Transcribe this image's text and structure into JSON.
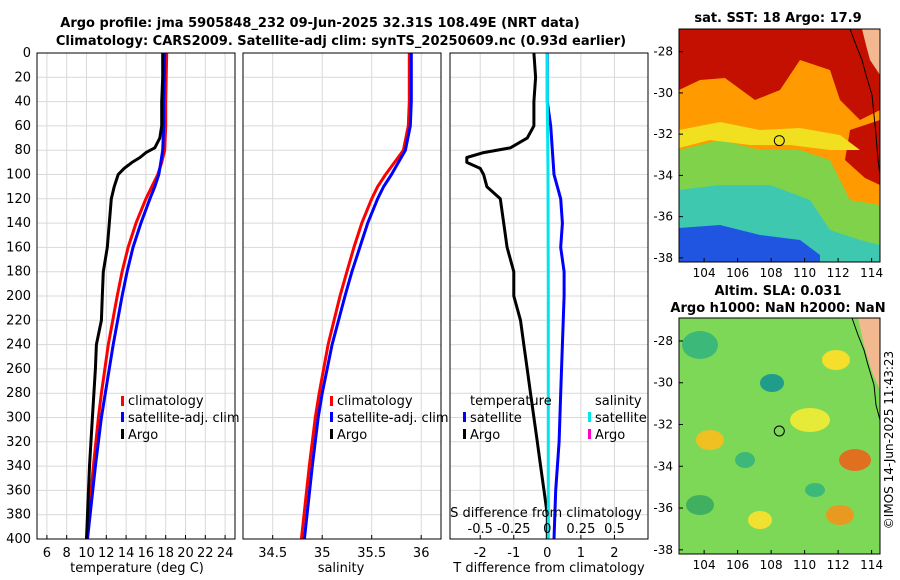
{
  "header": {
    "title_line1": "Argo profile: jma 5905848_232 09-Jun-2025 32.31S 108.49E (NRT data)",
    "title_line2": "Climatology: CARS2009. Satellite-adj clim: synTS_20250609.nc (0.93d earlier)"
  },
  "credit": "©IMOS 14-Jun-2025 11:43:23",
  "colors": {
    "climatology": "#ff0000",
    "satellite": "#0000ff",
    "argo": "#000000",
    "cyan": "#00e5ee",
    "magenta": "#ff00cc"
  },
  "chart_data": [
    {
      "type": "line",
      "title": "",
      "xlabel": "temperature (deg C)",
      "ylabel": "",
      "xlim": [
        5,
        25
      ],
      "ylim": [
        400,
        0
      ],
      "xticks": [
        6,
        8,
        10,
        12,
        14,
        16,
        18,
        20,
        22,
        24
      ],
      "yticks": [
        0,
        20,
        40,
        60,
        80,
        100,
        120,
        140,
        160,
        180,
        200,
        220,
        240,
        260,
        280,
        300,
        320,
        340,
        360,
        380,
        400
      ],
      "grid": true,
      "legend": {
        "placement": "middle-right",
        "items": [
          "climatology",
          "satellite-adj. clim",
          "Argo"
        ]
      },
      "series": [
        {
          "name": "climatology",
          "color": "#ff0000",
          "depth": [
            0,
            20,
            40,
            60,
            80,
            90,
            100,
            110,
            120,
            140,
            160,
            180,
            200,
            240,
            280,
            300,
            340,
            400
          ],
          "values": [
            18.1,
            18.05,
            18.0,
            18.0,
            17.9,
            17.6,
            17.2,
            16.6,
            16.0,
            15.0,
            14.2,
            13.6,
            13.1,
            12.2,
            11.5,
            11.2,
            10.7,
            10.0
          ]
        },
        {
          "name": "satellite-adj. clim",
          "color": "#0000ff",
          "depth": [
            0,
            20,
            40,
            60,
            80,
            90,
            100,
            110,
            120,
            140,
            160,
            180,
            200,
            240,
            280,
            300,
            340,
            400
          ],
          "values": [
            17.9,
            17.85,
            17.8,
            17.8,
            17.7,
            17.5,
            17.3,
            16.9,
            16.4,
            15.5,
            14.7,
            14.1,
            13.6,
            12.7,
            11.9,
            11.5,
            10.9,
            10.1
          ]
        },
        {
          "name": "Argo",
          "color": "#000000",
          "depth": [
            0,
            20,
            40,
            60,
            70,
            78,
            82,
            86,
            90,
            95,
            100,
            110,
            120,
            140,
            160,
            180,
            200,
            220,
            240,
            260,
            300,
            340,
            400
          ],
          "values": [
            17.7,
            17.7,
            17.6,
            17.6,
            17.4,
            16.9,
            16.0,
            15.4,
            14.6,
            13.8,
            13.2,
            12.8,
            12.5,
            12.3,
            12.1,
            11.7,
            11.6,
            11.5,
            11.0,
            10.9,
            10.6,
            10.3,
            10.0
          ]
        }
      ]
    },
    {
      "type": "line",
      "title": "",
      "xlabel": "salinity",
      "ylabel": "",
      "xlim": [
        34.2,
        36.2
      ],
      "ylim": [
        400,
        0
      ],
      "xticks": [
        34.5,
        35,
        35.5,
        36
      ],
      "xtick_labels": [
        "34.5",
        "35",
        "35.5",
        "36"
      ],
      "grid": true,
      "legend": {
        "placement": "middle-right",
        "items": [
          "climatology",
          "satellite-adj. clim",
          "Argo"
        ]
      },
      "series": [
        {
          "name": "climatology",
          "color": "#ff0000",
          "depth": [
            0,
            20,
            40,
            60,
            80,
            90,
            100,
            110,
            120,
            140,
            160,
            180,
            200,
            240,
            280,
            300,
            340,
            400
          ],
          "values": [
            35.88,
            35.88,
            35.88,
            35.87,
            35.82,
            35.73,
            35.64,
            35.56,
            35.5,
            35.4,
            35.32,
            35.25,
            35.18,
            35.06,
            34.97,
            34.93,
            34.87,
            34.79
          ]
        },
        {
          "name": "satellite-adj. clim",
          "color": "#0000ff",
          "depth": [
            0,
            20,
            40,
            60,
            80,
            90,
            100,
            110,
            120,
            140,
            160,
            180,
            200,
            240,
            280,
            300,
            340,
            400
          ],
          "values": [
            35.9,
            35.9,
            35.9,
            35.89,
            35.84,
            35.77,
            35.7,
            35.62,
            35.56,
            35.46,
            35.38,
            35.3,
            35.23,
            35.1,
            35.0,
            34.96,
            34.9,
            34.82
          ]
        },
        {
          "name": "Argo",
          "color": "#000000",
          "depth": [],
          "values": []
        }
      ]
    },
    {
      "type": "line",
      "title": "",
      "xlabel": "T difference from climatology",
      "xlabel2": "S difference from climatology",
      "ylabel": "",
      "xlim": [
        -2.9,
        3.0
      ],
      "ylim": [
        400,
        0
      ],
      "xticks": [
        -2,
        -1,
        0,
        1,
        2
      ],
      "xtick_labels": [
        "-2",
        "-1",
        "0",
        "1",
        "2"
      ],
      "x2ticks": [
        -0.5,
        -0.25,
        0,
        0.25,
        0.5
      ],
      "x2tick_labels": [
        "-0.5",
        "-0.25",
        "0",
        "0.25",
        "0.5"
      ],
      "x2lim": [
        -0.725,
        0.75
      ],
      "grid": true,
      "legend": {
        "placement": "middle",
        "temperature_header": "temperature",
        "salinity_header": "salinity",
        "items": [
          "satellite",
          "Argo",
          "satellite",
          "Argo"
        ]
      },
      "series": [
        {
          "name": "T satellite",
          "color": "#0000ff",
          "depth": [
            0,
            40,
            60,
            100,
            120,
            140,
            160,
            180,
            200,
            240,
            280,
            320,
            360,
            400
          ],
          "values": [
            0.0,
            0.0,
            0.1,
            0.2,
            0.4,
            0.45,
            0.4,
            0.5,
            0.5,
            0.45,
            0.4,
            0.35,
            0.25,
            0.2
          ]
        },
        {
          "name": "T Argo",
          "color": "#000000",
          "depth": [
            0,
            20,
            40,
            60,
            70,
            78,
            82,
            86,
            90,
            95,
            100,
            110,
            120,
            140,
            160,
            180,
            200,
            220,
            240,
            260,
            280,
            300,
            320,
            340,
            360,
            380,
            400
          ],
          "values": [
            -0.4,
            -0.35,
            -0.4,
            -0.4,
            -0.6,
            -1.1,
            -1.9,
            -2.4,
            -2.4,
            -2.0,
            -1.9,
            -1.8,
            -1.4,
            -1.3,
            -1.2,
            -1.0,
            -1.0,
            -0.8,
            -0.7,
            -0.6,
            -0.5,
            -0.4,
            -0.3,
            -0.2,
            -0.1,
            0.0,
            0.0
          ]
        },
        {
          "name": "S satellite",
          "color": "#00e5ee",
          "depth": [
            0,
            20,
            40,
            100,
            200,
            300,
            400
          ],
          "values": [
            -0.01,
            0.0,
            0.0,
            0.02,
            0.03,
            0.03,
            0.03
          ]
        }
      ]
    }
  ],
  "maps": {
    "sst": {
      "title": "sat. SST: 18 Argo: 17.9",
      "lon_ticks": [
        104,
        106,
        108,
        110,
        112,
        114
      ],
      "lat_ticks": [
        -28,
        -30,
        -32,
        -34,
        -36,
        -38
      ],
      "lon_tick_labels": [
        "104",
        "106",
        "108",
        "110",
        "112",
        "114"
      ],
      "lat_tick_labels": [
        "-28",
        "-30",
        "-32",
        "-34",
        "-36",
        "-38"
      ],
      "lon_range": [
        102.5,
        114.5
      ],
      "lat_range": [
        -38.2,
        -26.9
      ],
      "argo_position": {
        "lon": 108.49,
        "lat": -32.31
      }
    },
    "sla": {
      "title_line1": "Altim. SLA: 0.031",
      "title_line2": "Argo h1000: NaN h2000: NaN",
      "lon_ticks": [
        104,
        106,
        108,
        110,
        112,
        114
      ],
      "lat_ticks": [
        -28,
        -30,
        -32,
        -34,
        -36,
        -38
      ],
      "lon_tick_labels": [
        "104",
        "106",
        "108",
        "110",
        "112",
        "114"
      ],
      "lat_tick_labels": [
        "-28",
        "-30",
        "-32",
        "-34",
        "-36",
        "-38"
      ],
      "lon_range": [
        102.5,
        114.5
      ],
      "lat_range": [
        -38.2,
        -26.9
      ],
      "argo_position": {
        "lon": 108.49,
        "lat": -32.31
      }
    }
  }
}
